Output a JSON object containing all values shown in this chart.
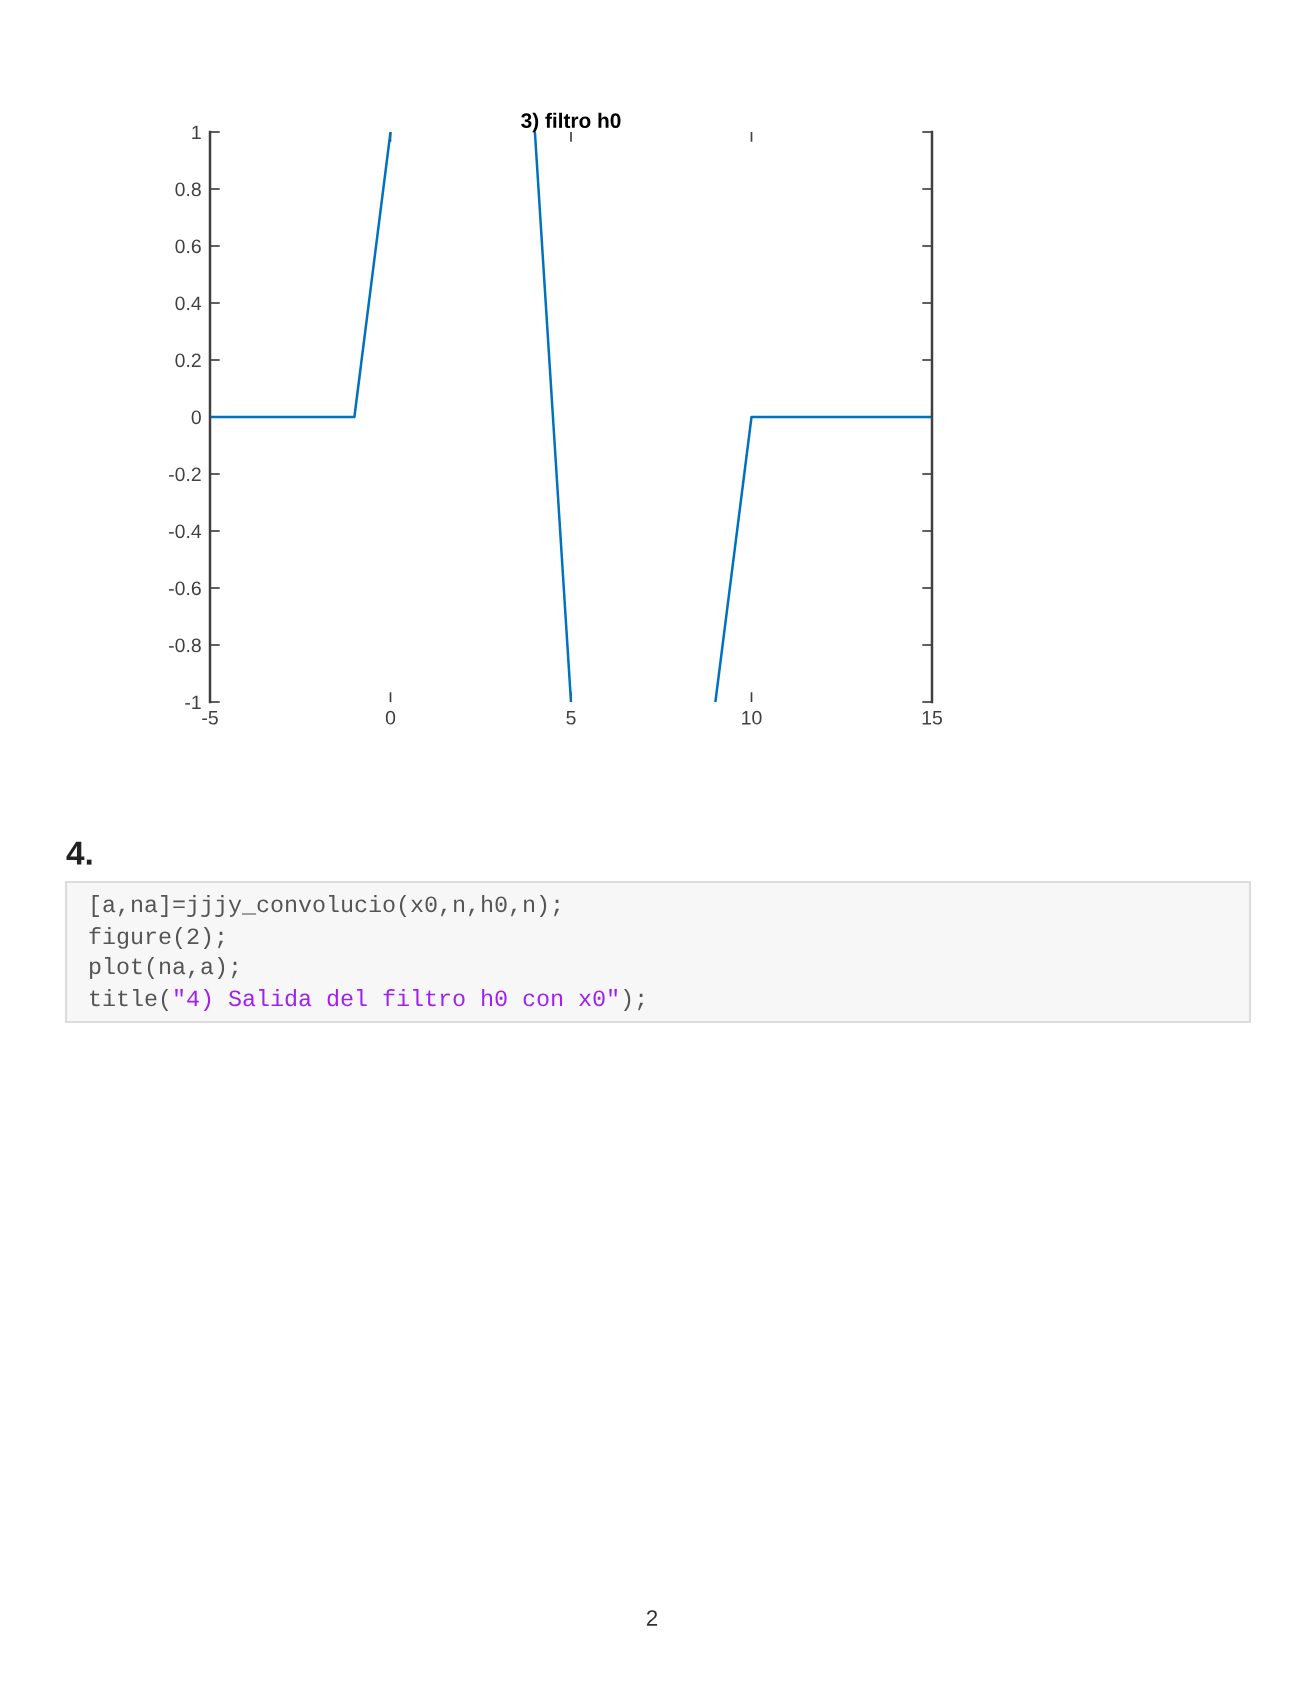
{
  "chart_data": {
    "type": "line",
    "title": "3) filtro h0",
    "x": [
      -5,
      -4,
      -3,
      -2,
      -1,
      0,
      1,
      2,
      3,
      4,
      5,
      6,
      7,
      8,
      9,
      10,
      11,
      12,
      13,
      14,
      15
    ],
    "series": [
      {
        "color": "#0072bd",
        "values": [
          0,
          0,
          0,
          0,
          0,
          1,
          null,
          null,
          null,
          1,
          -1,
          null,
          null,
          null,
          -1,
          0,
          0,
          0,
          0,
          0,
          0
        ]
      }
    ],
    "xlim": [
      -5,
      15
    ],
    "ylim": [
      -1,
      1
    ],
    "xticks": [
      -5,
      0,
      5,
      10,
      15
    ],
    "yticks": [
      -1,
      -0.8,
      -0.6,
      -0.4,
      -0.2,
      0,
      0.2,
      0.4,
      0.6,
      0.8,
      1
    ],
    "grid": false,
    "annotations": [
      "4.",
      "[a,na]=jjjy_convolucio(x0,n,h0,n);",
      "figure(2);",
      "plot(na,a);",
      "title(",
      "\"4) Salida del filtro h0 con x0\"",
      ");",
      "2"
    ]
  }
}
